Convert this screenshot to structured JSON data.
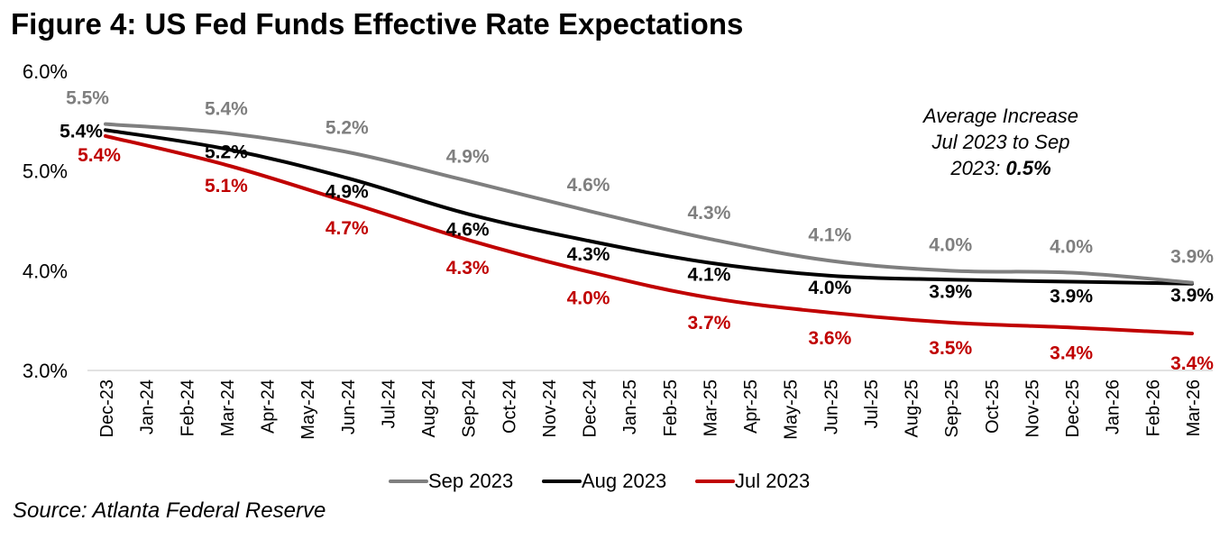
{
  "title": "Figure 4: US Fed Funds Effective Rate Expectations",
  "source": "Source: Atlanta Federal Reserve",
  "annotation": {
    "line1": "Average Increase",
    "line2": "Jul 2023 to Sep",
    "line3_prefix": "2023: ",
    "line3_value": "0.5%"
  },
  "chart_data": {
    "type": "line",
    "title": "Figure 4: US Fed Funds Effective Rate Expectations",
    "xlabel": "",
    "ylabel": "",
    "ylim": [
      3.0,
      6.0
    ],
    "yticks": [
      3.0,
      4.0,
      5.0,
      6.0
    ],
    "ytick_labels": [
      "3.0%",
      "4.0%",
      "5.0%",
      "6.0%"
    ],
    "grid": false,
    "legend_position": "bottom-center",
    "categories": [
      "Dec-23",
      "Jan-24",
      "Feb-24",
      "Mar-24",
      "Apr-24",
      "May-24",
      "Jun-24",
      "Jul-24",
      "Aug-24",
      "Sep-24",
      "Oct-24",
      "Nov-24",
      "Dec-24",
      "Jan-25",
      "Feb-25",
      "Mar-25",
      "Apr-25",
      "May-25",
      "Jun-25",
      "Jul-25",
      "Aug-25",
      "Sep-25",
      "Oct-25",
      "Nov-25",
      "Dec-25",
      "Jan-26",
      "Feb-26",
      "Mar-26"
    ],
    "point_categories": [
      "Dec-23",
      "Mar-24",
      "Jun-24",
      "Sep-24",
      "Dec-24",
      "Mar-25",
      "Jun-25",
      "Sep-25",
      "Dec-25",
      "Mar-26"
    ],
    "series": [
      {
        "name": "Sep 2023",
        "color": "#7f7f7f",
        "values": [
          5.47,
          5.38,
          5.19,
          4.9,
          4.6,
          4.32,
          4.1,
          4.0,
          3.98,
          3.88
        ],
        "labels": [
          "5.5%",
          "5.4%",
          "5.2%",
          "4.9%",
          "4.6%",
          "4.3%",
          "4.1%",
          "4.0%",
          "4.0%",
          "3.9%"
        ]
      },
      {
        "name": "Aug 2023",
        "color": "#000000",
        "values": [
          5.41,
          5.22,
          4.93,
          4.57,
          4.3,
          4.08,
          3.95,
          3.91,
          3.89,
          3.87
        ],
        "labels": [
          "5.4%",
          "5.2%",
          "4.9%",
          "4.6%",
          "4.3%",
          "4.1%",
          "4.0%",
          "3.9%",
          "3.9%",
          "3.9%"
        ]
      },
      {
        "name": "Jul 2023",
        "color": "#c00000",
        "values": [
          5.35,
          5.06,
          4.69,
          4.31,
          3.99,
          3.73,
          3.58,
          3.48,
          3.43,
          3.37
        ],
        "labels": [
          "5.4%",
          "5.1%",
          "4.7%",
          "4.3%",
          "4.0%",
          "3.7%",
          "3.6%",
          "3.5%",
          "3.4%",
          "3.4%"
        ]
      }
    ]
  }
}
